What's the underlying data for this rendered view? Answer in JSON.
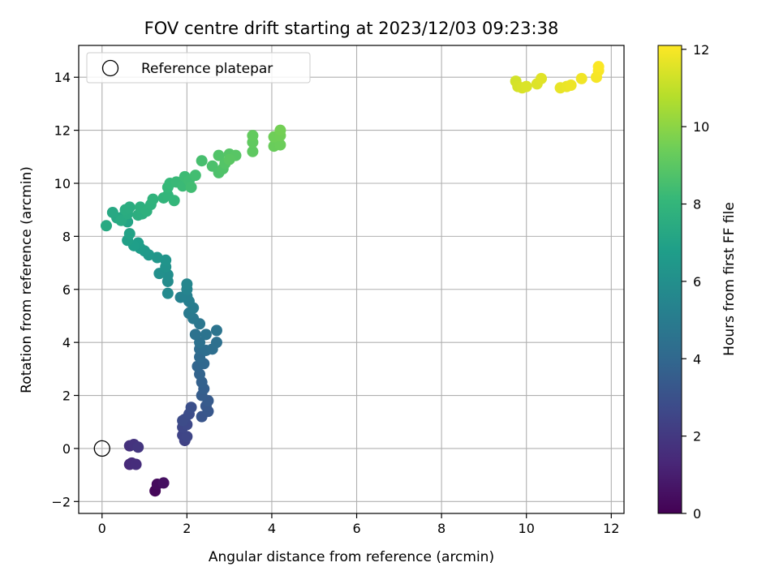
{
  "chart_data": {
    "type": "scatter",
    "title": "FOV centre drift starting at 2023/12/03 09:23:38",
    "xlabel": "Angular distance from reference (arcmin)",
    "ylabel": "Rotation from reference (arcmin)",
    "xlim": [
      -0.55,
      12.3
    ],
    "ylim": [
      -2.45,
      15.2
    ],
    "xticks": [
      "0",
      "2",
      "4",
      "6",
      "8",
      "10",
      "12"
    ],
    "yticks": [
      "−2",
      "0",
      "2",
      "4",
      "6",
      "8",
      "10",
      "12",
      "14"
    ],
    "grid": true,
    "legend": {
      "placement": "top-left",
      "entries": [
        "Reference platepar"
      ]
    },
    "reference_point": {
      "x": 0,
      "y": 0
    },
    "colorbar": {
      "label": "Hours from first FF file",
      "range": [
        0,
        12.1
      ],
      "ticks": [
        "0",
        "2",
        "4",
        "6",
        "8",
        "10",
        "12"
      ],
      "colormap": "viridis",
      "colors": [
        "#440154",
        "#482878",
        "#3e4989",
        "#31688e",
        "#26828e",
        "#1f9e89",
        "#35b779",
        "#6ece58",
        "#b5de2b",
        "#fde725"
      ]
    },
    "series": [
      {
        "points": [
          [
            1.25,
            -1.6,
            0.2
          ],
          [
            1.3,
            -1.35,
            0.35
          ],
          [
            1.45,
            -1.3,
            0.5
          ],
          [
            0.65,
            -0.6,
            1.4
          ],
          [
            0.7,
            -0.55,
            1.5
          ],
          [
            0.8,
            -0.6,
            1.55
          ],
          [
            0.65,
            0.1,
            1.7
          ],
          [
            0.75,
            0.15,
            1.8
          ],
          [
            0.85,
            0.05,
            1.9
          ],
          [
            1.95,
            0.3,
            2.4
          ],
          [
            1.9,
            0.5,
            2.5
          ],
          [
            2.0,
            0.45,
            2.55
          ],
          [
            1.9,
            0.8,
            2.6
          ],
          [
            2.0,
            0.9,
            2.7
          ],
          [
            1.95,
            1.1,
            2.75
          ],
          [
            1.9,
            1.05,
            2.8
          ],
          [
            2.05,
            1.3,
            2.85
          ],
          [
            2.1,
            1.55,
            2.95
          ],
          [
            2.35,
            1.2,
            3.2
          ],
          [
            2.5,
            1.4,
            3.3
          ],
          [
            2.45,
            1.6,
            3.35
          ],
          [
            2.5,
            1.8,
            3.45
          ],
          [
            2.35,
            2.0,
            3.55
          ],
          [
            2.4,
            2.25,
            3.65
          ],
          [
            2.35,
            2.5,
            3.75
          ],
          [
            2.3,
            2.8,
            3.85
          ],
          [
            2.25,
            3.1,
            3.95
          ],
          [
            2.4,
            3.2,
            4.05
          ],
          [
            2.3,
            3.45,
            4.15
          ],
          [
            2.3,
            3.75,
            4.3
          ],
          [
            2.45,
            3.7,
            4.35
          ],
          [
            2.6,
            3.75,
            4.4
          ],
          [
            2.7,
            4.0,
            4.45
          ],
          [
            2.3,
            4.0,
            4.5
          ],
          [
            2.2,
            4.3,
            4.55
          ],
          [
            2.45,
            4.3,
            4.6
          ],
          [
            2.7,
            4.45,
            4.65
          ],
          [
            2.3,
            4.7,
            4.75
          ],
          [
            2.15,
            4.9,
            4.85
          ],
          [
            2.05,
            5.1,
            4.95
          ],
          [
            2.15,
            5.3,
            5.05
          ],
          [
            2.05,
            5.55,
            5.15
          ],
          [
            2.0,
            5.75,
            5.25
          ],
          [
            1.85,
            5.7,
            5.35
          ],
          [
            2.0,
            6.0,
            5.45
          ],
          [
            2.0,
            6.2,
            5.55
          ],
          [
            1.55,
            5.85,
            5.75
          ],
          [
            1.55,
            6.3,
            5.85
          ],
          [
            1.55,
            6.55,
            5.95
          ],
          [
            1.35,
            6.6,
            6.05
          ],
          [
            1.5,
            6.85,
            6.15
          ],
          [
            1.5,
            7.1,
            6.25
          ],
          [
            1.3,
            7.2,
            6.35
          ],
          [
            1.1,
            7.3,
            6.45
          ],
          [
            1.0,
            7.45,
            6.55
          ],
          [
            0.9,
            7.55,
            6.65
          ],
          [
            0.85,
            7.75,
            6.7
          ],
          [
            0.75,
            7.65,
            6.75
          ],
          [
            0.6,
            7.85,
            6.85
          ],
          [
            0.65,
            8.1,
            6.95
          ],
          [
            0.6,
            8.55,
            7.05
          ],
          [
            0.5,
            8.75,
            7.15
          ],
          [
            0.35,
            8.7,
            7.2
          ],
          [
            0.25,
            8.9,
            7.25
          ],
          [
            0.1,
            8.4,
            7.3
          ],
          [
            0.45,
            8.6,
            7.35
          ],
          [
            0.6,
            8.85,
            7.4
          ],
          [
            0.55,
            9.0,
            7.45
          ],
          [
            0.65,
            9.1,
            7.5
          ],
          [
            0.85,
            8.8,
            7.55
          ],
          [
            0.95,
            8.85,
            7.6
          ],
          [
            0.9,
            9.1,
            7.65
          ],
          [
            1.05,
            8.95,
            7.7
          ],
          [
            1.15,
            9.2,
            7.75
          ],
          [
            1.2,
            9.4,
            7.8
          ],
          [
            1.45,
            9.45,
            7.9
          ],
          [
            1.55,
            9.55,
            7.95
          ],
          [
            1.7,
            9.35,
            8.0
          ],
          [
            1.55,
            9.85,
            8.05
          ],
          [
            1.6,
            10.0,
            8.1
          ],
          [
            1.75,
            10.05,
            8.15
          ],
          [
            1.9,
            9.9,
            8.2
          ],
          [
            1.95,
            10.25,
            8.25
          ],
          [
            2.05,
            10.1,
            8.3
          ],
          [
            2.1,
            9.85,
            8.35
          ],
          [
            2.2,
            10.3,
            8.4
          ],
          [
            2.35,
            10.85,
            8.5
          ],
          [
            2.6,
            10.65,
            8.6
          ],
          [
            2.75,
            10.4,
            8.65
          ],
          [
            2.85,
            10.55,
            8.7
          ],
          [
            2.75,
            11.05,
            8.75
          ],
          [
            2.9,
            10.75,
            8.8
          ],
          [
            3.0,
            11.1,
            8.85
          ],
          [
            3.15,
            11.05,
            8.9
          ],
          [
            3.0,
            10.9,
            8.95
          ],
          [
            3.55,
            11.2,
            9.05
          ],
          [
            3.55,
            11.55,
            9.1
          ],
          [
            3.55,
            11.8,
            9.15
          ],
          [
            4.05,
            11.4,
            9.3
          ],
          [
            4.2,
            11.45,
            9.35
          ],
          [
            4.05,
            11.75,
            9.4
          ],
          [
            4.2,
            11.8,
            9.45
          ],
          [
            4.2,
            12.0,
            9.5
          ],
          [
            9.75,
            13.85,
            11.3
          ],
          [
            9.8,
            13.65,
            11.35
          ],
          [
            9.9,
            13.6,
            11.4
          ],
          [
            10.0,
            13.65,
            11.45
          ],
          [
            10.25,
            13.75,
            11.5
          ],
          [
            10.35,
            13.95,
            11.55
          ],
          [
            10.8,
            13.6,
            11.7
          ],
          [
            10.95,
            13.65,
            11.75
          ],
          [
            11.05,
            13.7,
            11.8
          ],
          [
            11.3,
            13.95,
            11.85
          ],
          [
            11.65,
            14.0,
            11.95
          ],
          [
            11.7,
            14.25,
            12.0
          ],
          [
            11.7,
            14.4,
            12.05
          ]
        ]
      }
    ]
  }
}
